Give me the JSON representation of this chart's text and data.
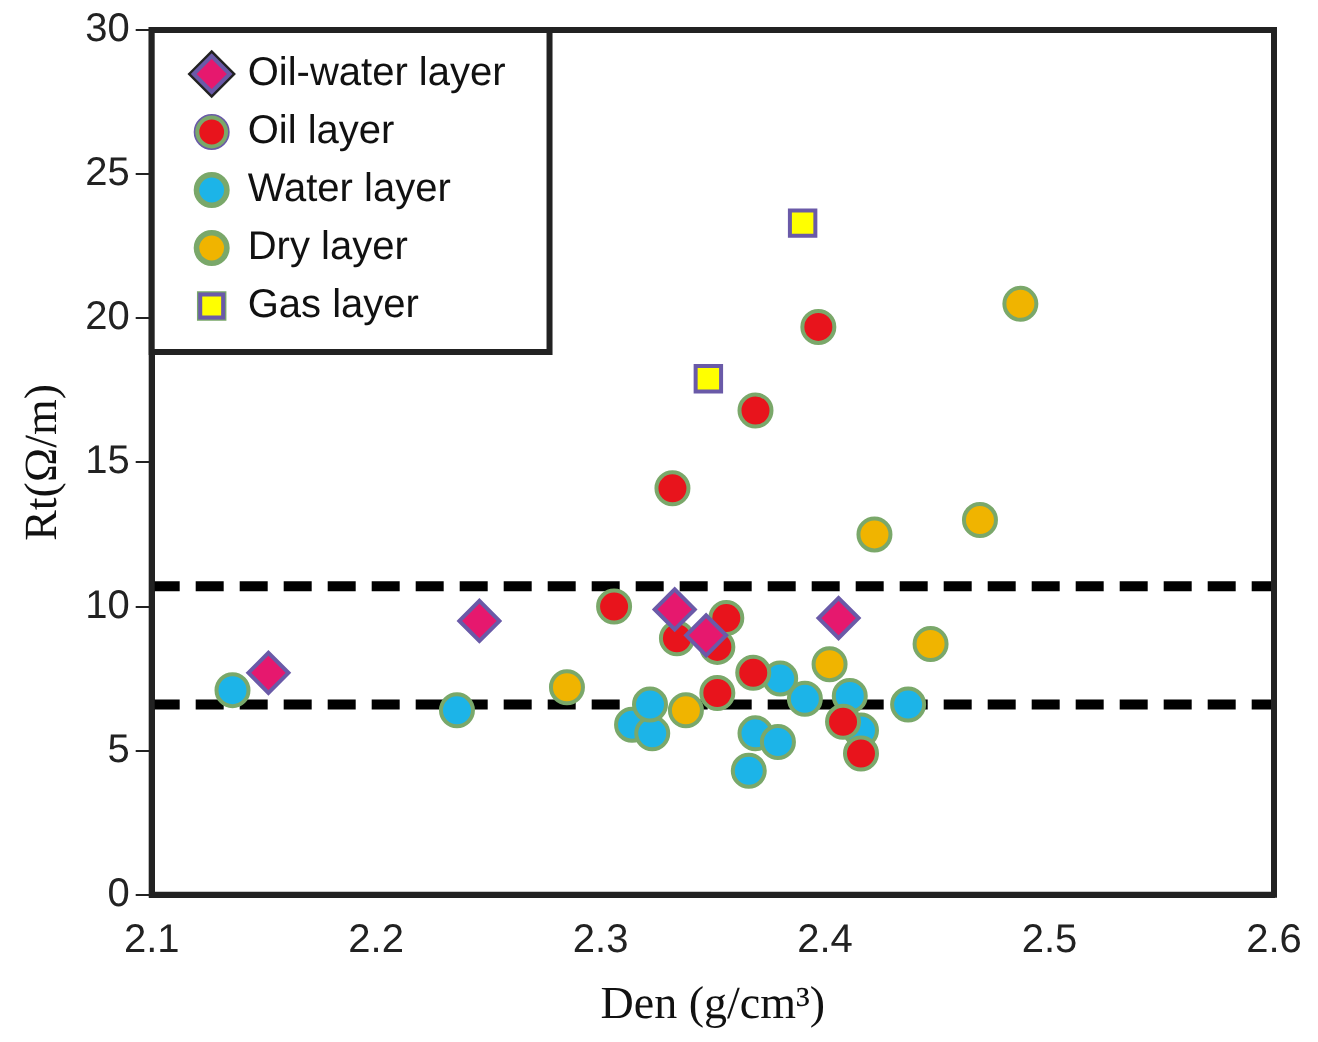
{
  "chart_data": {
    "type": "scatter",
    "xlabel": "Den (g/cm³)",
    "ylabel": "Rt(Ω/m)",
    "xlim": [
      2.1,
      2.6
    ],
    "xticks": [
      2.1,
      2.2,
      2.3,
      2.4,
      2.5,
      2.6
    ],
    "ylim": [
      0,
      30
    ],
    "yticks": [
      0,
      5,
      10,
      15,
      20,
      25,
      30
    ],
    "grid": false,
    "legend": "top left",
    "ref_lines": [
      {
        "axis": "y",
        "value": 10.7,
        "line_style": "dashed",
        "color": "#000000"
      },
      {
        "axis": "y",
        "value": 6.6,
        "line_style": "dashed",
        "color": "#000000"
      }
    ],
    "series": [
      {
        "name": "Oil-water layer",
        "color": "#e6186e",
        "marker": "diamond",
        "x": [
          2.152,
          2.246,
          2.333,
          2.347,
          2.406
        ],
        "values": [
          7.7,
          9.5,
          9.9,
          9.0,
          9.6
        ]
      },
      {
        "name": "Oil layer",
        "color": "#e8141c",
        "marker": "circle",
        "x": [
          2.397,
          2.332,
          2.369,
          2.306,
          2.334,
          2.352,
          2.356,
          2.368,
          2.352,
          2.408,
          2.416
        ],
        "values": [
          19.7,
          14.1,
          16.8,
          10.0,
          8.9,
          8.6,
          9.6,
          7.7,
          7.0,
          6.0,
          4.9
        ]
      },
      {
        "name": "Water layer",
        "color": "#1cb4e8",
        "marker": "circle",
        "x": [
          2.136,
          2.236,
          2.314,
          2.323,
          2.322,
          2.366,
          2.38,
          2.369,
          2.379,
          2.391,
          2.411,
          2.416,
          2.437
        ],
        "values": [
          7.1,
          6.4,
          5.9,
          5.6,
          6.6,
          4.3,
          7.5,
          5.6,
          5.3,
          6.8,
          6.9,
          5.7,
          6.6
        ]
      },
      {
        "name": "Dry layer",
        "color": "#f0b400",
        "marker": "circle",
        "x": [
          2.285,
          2.338,
          2.422,
          2.469,
          2.487,
          2.402,
          2.447
        ],
        "values": [
          7.2,
          6.4,
          12.5,
          13.0,
          20.5,
          8.0,
          8.7
        ]
      },
      {
        "name": "Gas layer",
        "color": "#ffff00",
        "marker": "square",
        "x": [
          2.39,
          2.348
        ],
        "values": [
          23.3,
          17.9
        ]
      }
    ]
  }
}
